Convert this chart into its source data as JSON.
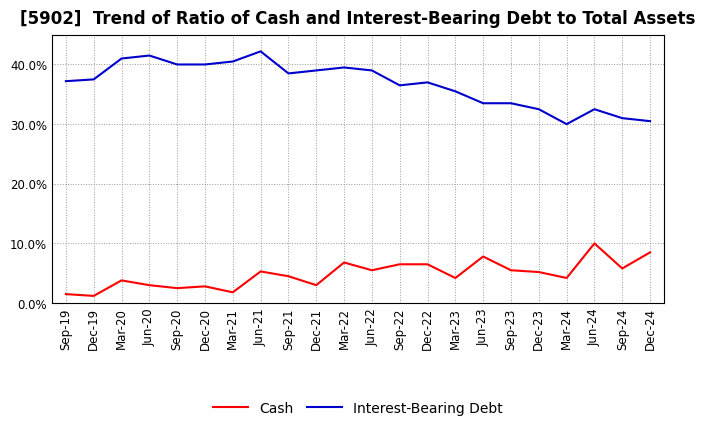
{
  "title": "[5902]  Trend of Ratio of Cash and Interest-Bearing Debt to Total Assets",
  "x_labels": [
    "Sep-19",
    "Dec-19",
    "Mar-20",
    "Jun-20",
    "Sep-20",
    "Dec-20",
    "Mar-21",
    "Jun-21",
    "Sep-21",
    "Dec-21",
    "Mar-22",
    "Jun-22",
    "Sep-22",
    "Dec-22",
    "Mar-23",
    "Jun-23",
    "Sep-23",
    "Dec-23",
    "Mar-24",
    "Jun-24",
    "Sep-24",
    "Dec-24"
  ],
  "cash": [
    1.5,
    1.2,
    3.8,
    3.0,
    2.5,
    2.8,
    1.8,
    5.3,
    4.5,
    3.0,
    6.8,
    5.5,
    6.5,
    6.5,
    4.2,
    7.8,
    5.5,
    5.2,
    4.2,
    10.0,
    5.8,
    8.5
  ],
  "debt": [
    37.2,
    37.5,
    41.0,
    41.5,
    40.0,
    40.0,
    40.5,
    42.2,
    38.5,
    39.0,
    39.5,
    39.0,
    36.5,
    37.0,
    35.5,
    33.5,
    33.5,
    32.5,
    30.0,
    32.5,
    31.0,
    30.5
  ],
  "cash_color": "#FF0000",
  "debt_color": "#0000CC",
  "bg_color": "#FFFFFF",
  "plot_bg_color": "#FFFFFF",
  "grid_color": "#999999",
  "ylim": [
    0,
    45
  ],
  "yticks": [
    0.0,
    10.0,
    20.0,
    30.0,
    40.0
  ],
  "legend_cash": "Cash",
  "legend_debt": "Interest-Bearing Debt",
  "title_fontsize": 12,
  "axis_fontsize": 8.5,
  "legend_fontsize": 10
}
